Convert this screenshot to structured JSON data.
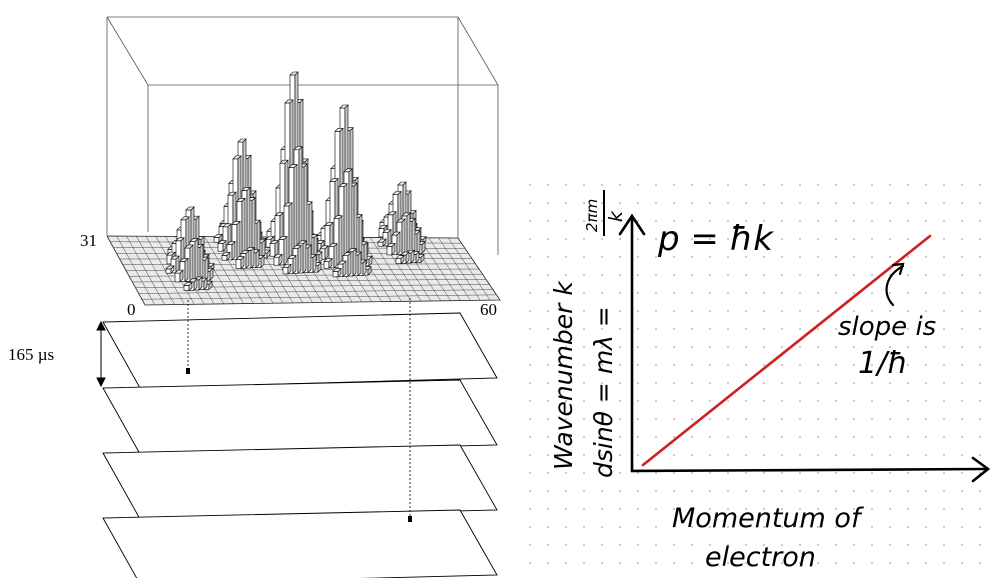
{
  "left_figure": {
    "histogram_label_left": "31",
    "axis_start": "0",
    "axis_end": "60",
    "spacing_label": "165 µs"
  },
  "right_figure": {
    "equation_top": "p = ħk",
    "y_axis_label": "Wavenumber k",
    "y_axis_formula_a": "dsinθ = mλ =",
    "y_axis_formula_frac_num": "2πm",
    "y_axis_formula_frac_den": "k",
    "annotation_line1": "slope is",
    "annotation_line2": "1/ħ",
    "x_axis_label_line1": "Momentum of",
    "x_axis_label_line2": "electron",
    "line_color": "#d01f1f",
    "line_start": {
      "x": 0,
      "y": 0
    },
    "line_end": {
      "x": 1,
      "y": 1
    }
  }
}
